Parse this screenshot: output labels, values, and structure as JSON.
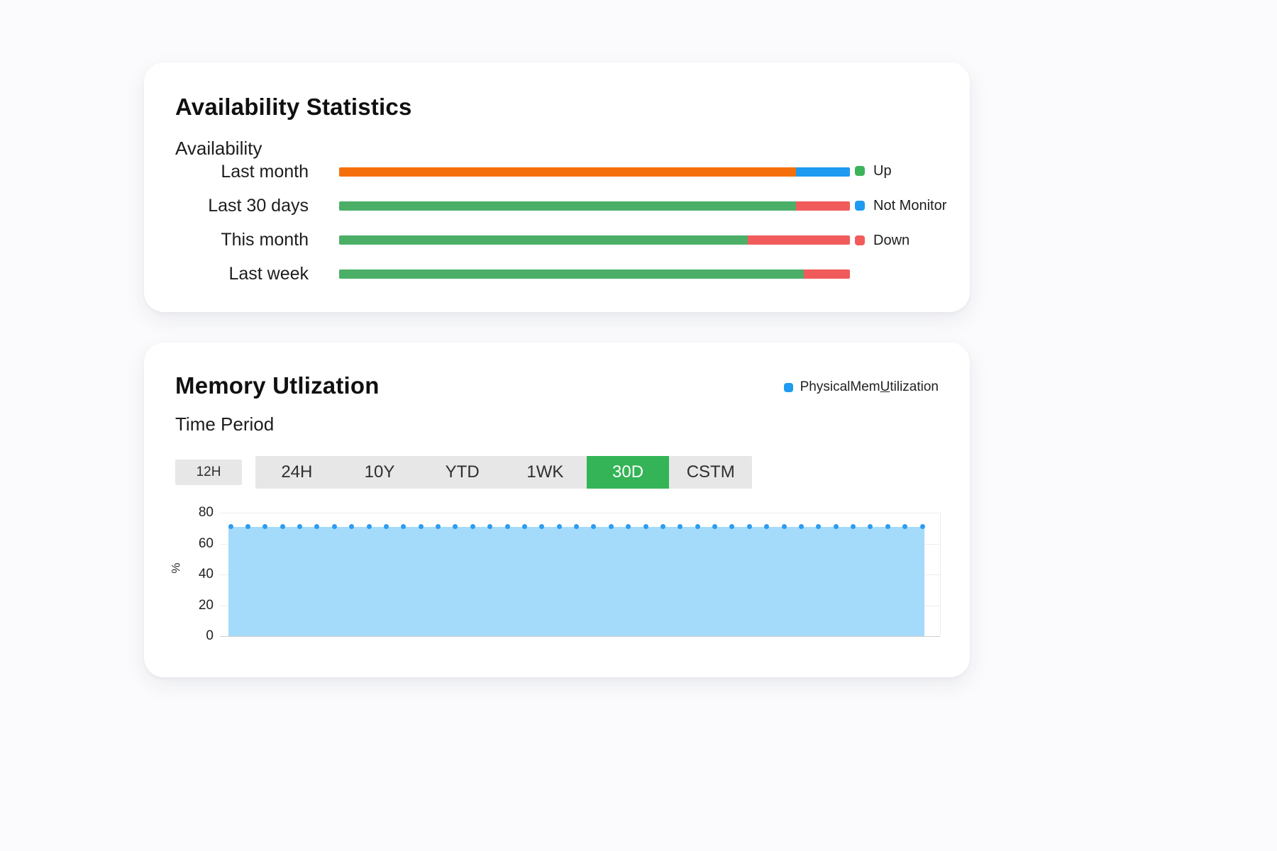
{
  "availability": {
    "title": "Availability Statistics",
    "subtitle": "Availability",
    "rows": [
      {
        "label": "Last month",
        "segments": [
          {
            "name": "orange",
            "color": "#F5700C",
            "pct": 89.4
          },
          {
            "name": "not-monitor",
            "color": "#1E9BF0",
            "pct": 10.6
          }
        ]
      },
      {
        "label": "Last 30 days",
        "segments": [
          {
            "name": "up",
            "color": "#4CAF68",
            "pct": 89.4
          },
          {
            "name": "down",
            "color": "#F15B5B",
            "pct": 10.6
          }
        ]
      },
      {
        "label": "This month",
        "segments": [
          {
            "name": "up",
            "color": "#4CAF68",
            "pct": 80
          },
          {
            "name": "down",
            "color": "#F15B5B",
            "pct": 20
          }
        ]
      },
      {
        "label": "Last week",
        "segments": [
          {
            "name": "up",
            "color": "#4CAF68",
            "pct": 91
          },
          {
            "name": "down",
            "color": "#F15B5B",
            "pct": 9
          }
        ]
      }
    ],
    "legend": [
      {
        "label": "Up",
        "color": "#3CB45B"
      },
      {
        "label": "Not Monitor",
        "color": "#1E9BF0"
      },
      {
        "label": "Down",
        "color": "#F15B5B"
      }
    ]
  },
  "memory": {
    "title": "Memory Utlization",
    "series_legend": {
      "pre": "PhysicalMem",
      "underlined_char": "U",
      "post": "tilization",
      "color": "#1E9BF0"
    },
    "time_period_label": "Time Period",
    "buttons": {
      "standalone": "12H",
      "group": [
        "24H",
        "10Y",
        "YTD",
        "1WK",
        "30D",
        "CSTM"
      ],
      "active": "30D",
      "active_color": "#34B456",
      "active_text_color": "#ffffff"
    },
    "chart": {
      "ylabel": "%",
      "yticks": [
        0,
        20,
        40,
        60,
        80
      ],
      "ymax": 80,
      "value": 71,
      "num_points": 41,
      "area_color": "#A4DAFA",
      "dot_color": "#2D9CF0"
    }
  },
  "chart_data": [
    {
      "type": "bar",
      "orientation": "horizontal",
      "stacked": true,
      "title": "Availability Statistics",
      "subtitle": "Availability",
      "categories": [
        "Last month",
        "Last 30 days",
        "This month",
        "Last week"
      ],
      "series": [
        {
          "name": "Up",
          "color": "#4CAF68",
          "values": [
            0,
            89,
            80,
            91
          ]
        },
        {
          "name": "Not Monitor",
          "color": "#1E9BF0",
          "values": [
            11,
            0,
            0,
            0
          ]
        },
        {
          "name": "Down",
          "color": "#F15B5B",
          "values": [
            0,
            11,
            20,
            9
          ]
        },
        {
          "name": "Unlabeled orange segment",
          "color": "#F5700C",
          "values": [
            89,
            0,
            0,
            0
          ]
        }
      ],
      "xlim": [
        0,
        100
      ],
      "legend": [
        "Up",
        "Not Monitor",
        "Down"
      ],
      "legend_position": "right",
      "grid": false
    },
    {
      "type": "area",
      "title": "Memory Utlization",
      "ylabel": "%",
      "ylim": [
        0,
        80
      ],
      "yticks": [
        0,
        20,
        40,
        60,
        80
      ],
      "series": [
        {
          "name": "PhysicalMemUtilization",
          "color": "#A4DAFA",
          "constant_value": 71,
          "num_points": 41
        }
      ],
      "selected_time_period": "30D",
      "time_period_options": [
        "12H",
        "24H",
        "10Y",
        "YTD",
        "1WK",
        "30D",
        "CSTM"
      ],
      "grid": true,
      "legend_position": "top-right"
    }
  ]
}
